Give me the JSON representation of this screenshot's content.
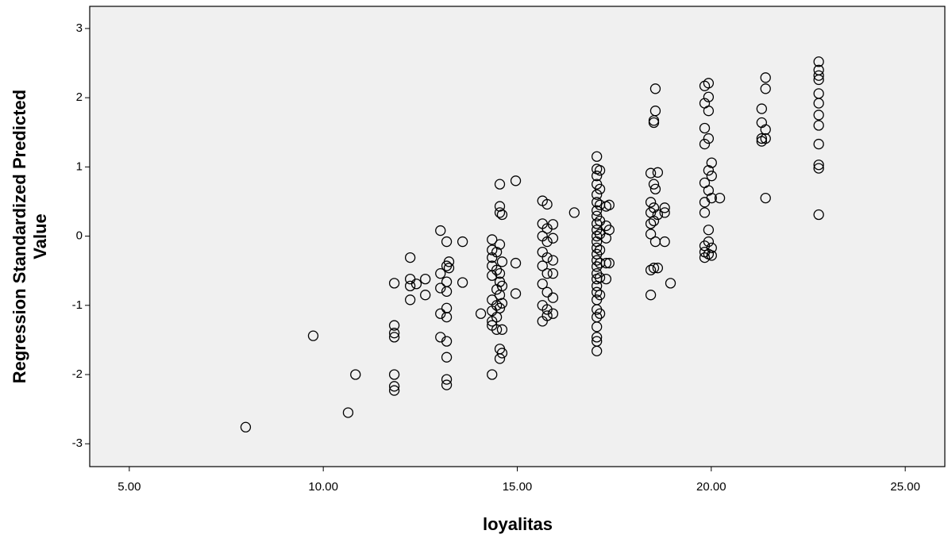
{
  "chart_data": {
    "type": "scatter",
    "xlabel": "loyalitas",
    "ylabel": [
      "Regression Standardized Predicted",
      "Value"
    ],
    "xlim": [
      3.98,
      26.02
    ],
    "ylim": [
      -3.33,
      3.32
    ],
    "xticks": [
      {
        "value": 5,
        "label": "5.00"
      },
      {
        "value": 10,
        "label": "10.00"
      },
      {
        "value": 15,
        "label": "15.00"
      },
      {
        "value": 20,
        "label": "20.00"
      },
      {
        "value": 25,
        "label": "25.00"
      }
    ],
    "yticks": [
      3,
      2,
      1,
      0,
      -1,
      -2,
      -3
    ],
    "marker_color": "#000000",
    "plot_background": "#f0f0f0",
    "x": [
      8.0,
      9.74,
      10.64,
      10.83,
      11.83,
      11.83,
      11.83,
      11.83,
      11.83,
      11.83,
      11.83,
      12.24,
      12.24,
      12.24,
      12.24,
      12.4,
      12.63,
      12.63,
      13.02,
      13.02,
      13.02,
      13.02,
      13.02,
      13.18,
      13.18,
      13.18,
      13.18,
      13.18,
      13.18,
      13.18,
      13.18,
      13.18,
      13.18,
      13.24,
      13.24,
      13.59,
      13.59,
      14.06,
      14.35,
      14.35,
      14.35,
      14.35,
      14.35,
      14.35,
      14.35,
      14.35,
      14.35,
      14.35,
      14.47,
      14.47,
      14.47,
      14.47,
      14.47,
      14.47,
      14.55,
      14.55,
      14.55,
      14.55,
      14.55,
      14.55,
      14.55,
      14.55,
      14.55,
      14.55,
      14.61,
      14.61,
      14.61,
      14.61,
      14.61,
      14.61,
      14.96,
      14.96,
      14.96,
      15.65,
      15.65,
      15.65,
      15.65,
      15.65,
      15.65,
      15.65,
      15.65,
      15.77,
      15.77,
      15.77,
      15.77,
      15.77,
      15.77,
      15.77,
      15.77,
      15.92,
      15.92,
      15.92,
      15.92,
      15.92,
      15.92,
      16.47,
      17.05,
      17.05,
      17.05,
      17.05,
      17.05,
      17.05,
      17.05,
      17.05,
      17.05,
      17.05,
      17.05,
      17.05,
      17.05,
      17.05,
      17.05,
      17.05,
      17.05,
      17.05,
      17.05,
      17.05,
      17.05,
      17.05,
      17.05,
      17.05,
      17.05,
      17.05,
      17.05,
      17.13,
      17.13,
      17.13,
      17.13,
      17.13,
      17.13,
      17.13,
      17.13,
      17.13,
      17.13,
      17.29,
      17.29,
      17.29,
      17.29,
      17.29,
      17.37,
      17.37,
      17.37,
      18.44,
      18.44,
      18.44,
      18.44,
      18.44,
      18.44,
      18.44,
      18.52,
      18.52,
      18.52,
      18.52,
      18.52,
      18.52,
      18.56,
      18.56,
      18.56,
      18.56,
      18.62,
      18.62,
      18.62,
      18.8,
      18.8,
      18.8,
      18.95,
      19.83,
      19.83,
      19.83,
      19.83,
      19.83,
      19.83,
      19.83,
      19.83,
      19.83,
      19.83,
      19.93,
      19.93,
      19.93,
      19.93,
      19.93,
      19.93,
      19.93,
      19.93,
      19.93,
      20.01,
      20.01,
      20.01,
      20.01,
      20.01,
      20.22,
      21.3,
      21.3,
      21.3,
      21.3,
      21.4,
      21.4,
      21.4,
      21.4,
      21.4,
      22.77,
      22.77,
      22.77,
      22.77,
      22.77,
      22.77,
      22.77,
      22.77,
      22.77,
      22.77,
      22.77,
      22.77
    ],
    "y": [
      -2.76,
      -1.44,
      -2.55,
      -2.0,
      -0.68,
      -1.29,
      -1.4,
      -1.46,
      -2.0,
      -2.17,
      -2.23,
      -0.31,
      -0.62,
      -0.72,
      -0.92,
      -0.69,
      -0.62,
      -0.85,
      0.08,
      -0.54,
      -0.75,
      -1.12,
      -1.46,
      -0.08,
      -0.43,
      -0.66,
      -0.8,
      -1.04,
      -1.17,
      -1.52,
      -1.75,
      -2.07,
      -2.15,
      -0.37,
      -0.46,
      -0.08,
      -0.67,
      -1.12,
      -0.05,
      -0.2,
      -0.31,
      -0.43,
      -0.57,
      -0.92,
      -1.08,
      -1.23,
      -1.29,
      -2.0,
      -0.23,
      -0.49,
      -0.77,
      -1.0,
      -1.17,
      -1.35,
      0.75,
      0.43,
      0.34,
      -0.12,
      -0.54,
      -0.66,
      -0.85,
      -1.04,
      -1.63,
      -1.77,
      0.31,
      -0.37,
      -0.72,
      -0.97,
      -1.35,
      -1.69,
      0.8,
      -0.39,
      -0.83,
      0.51,
      0.18,
      0.0,
      -0.23,
      -0.43,
      -0.69,
      -1.0,
      -1.23,
      0.46,
      0.11,
      -0.08,
      -0.31,
      -0.54,
      -0.81,
      -1.06,
      -1.15,
      0.17,
      -0.03,
      -0.35,
      -0.54,
      -0.89,
      -1.12,
      0.34,
      1.15,
      0.97,
      0.87,
      0.75,
      0.6,
      0.49,
      0.37,
      0.29,
      0.18,
      0.09,
      0.0,
      -0.08,
      -0.17,
      -0.26,
      -0.35,
      -0.44,
      -0.54,
      -0.62,
      -0.72,
      -0.81,
      -0.92,
      -1.06,
      -1.17,
      -1.31,
      -1.46,
      -1.52,
      -1.66,
      0.95,
      0.68,
      0.45,
      0.22,
      0.03,
      -0.2,
      -0.39,
      -0.6,
      -0.85,
      -1.12,
      0.43,
      0.15,
      -0.03,
      -0.39,
      -0.62,
      0.45,
      0.09,
      -0.39,
      0.91,
      0.49,
      0.34,
      0.18,
      0.03,
      -0.49,
      -0.85,
      1.67,
      1.64,
      0.75,
      0.41,
      0.22,
      -0.46,
      2.13,
      1.81,
      0.68,
      -0.08,
      0.92,
      0.31,
      -0.46,
      0.41,
      0.34,
      -0.08,
      -0.68,
      2.17,
      1.92,
      1.56,
      1.33,
      0.77,
      0.49,
      0.34,
      -0.14,
      -0.23,
      -0.31,
      2.21,
      2.01,
      1.81,
      1.41,
      0.95,
      0.66,
      0.09,
      -0.08,
      -0.26,
      1.06,
      0.87,
      0.55,
      -0.17,
      -0.28,
      0.55,
      1.84,
      1.64,
      1.41,
      1.37,
      2.29,
      2.13,
      1.54,
      1.41,
      0.55,
      2.52,
      2.4,
      2.32,
      2.26,
      2.06,
      1.92,
      1.75,
      1.6,
      1.33,
      1.03,
      0.98,
      0.31
    ]
  }
}
